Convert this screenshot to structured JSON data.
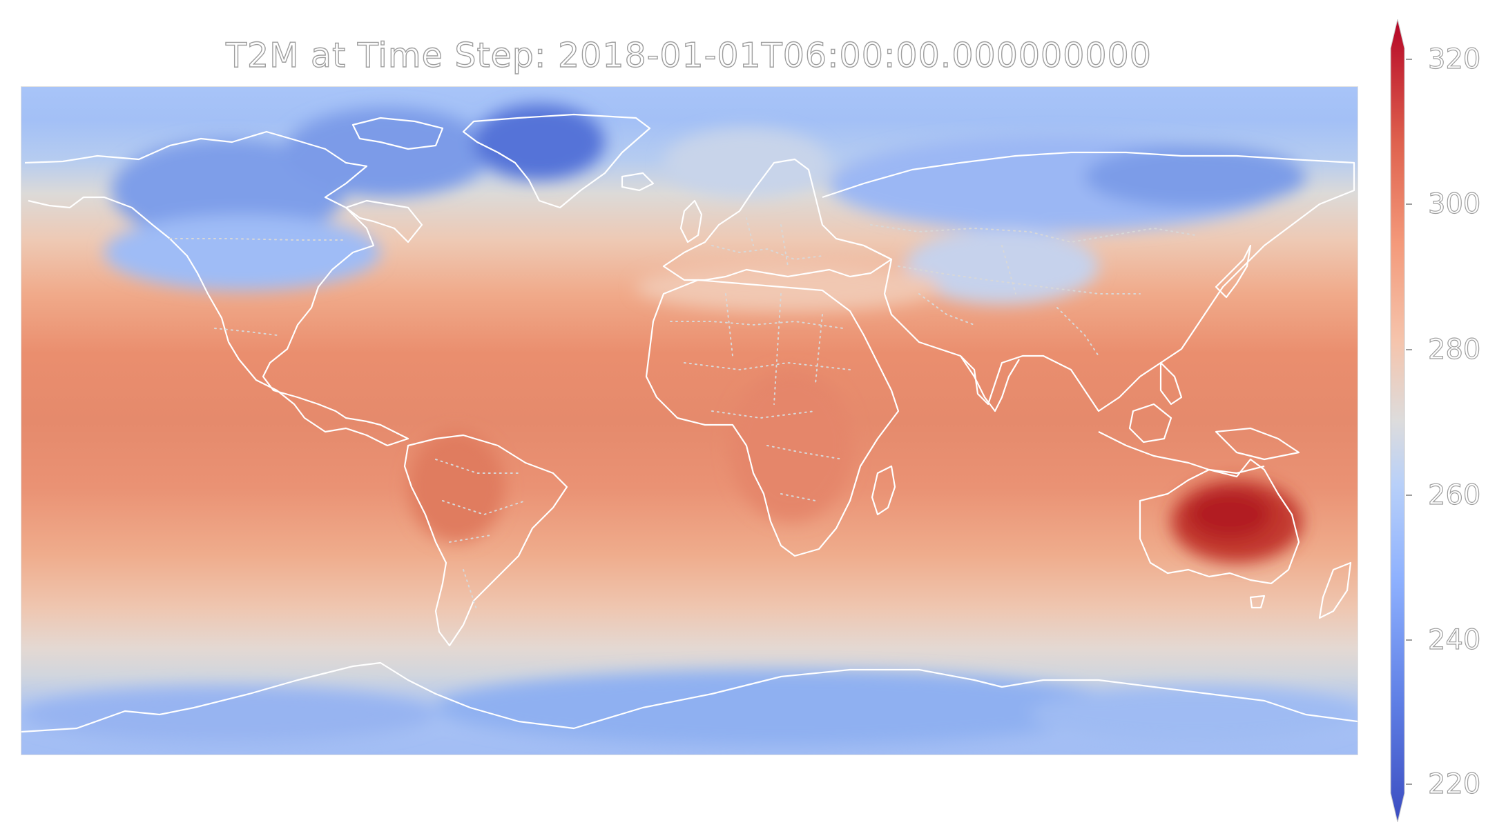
{
  "title": "T2M at Time Step: 2018-01-01T06:00:00.000000000",
  "colorbar": {
    "min": 220,
    "max": 320,
    "ticks": [
      "220",
      "240",
      "260",
      "280",
      "300",
      "320"
    ],
    "colormap": "coolwarm",
    "colors": {
      "cold": "#3b4cc0",
      "neutral": "#dddcdc",
      "hot": "#b40426"
    }
  },
  "map": {
    "coastline_color": "#ffffff",
    "border_style": "dotted"
  }
}
